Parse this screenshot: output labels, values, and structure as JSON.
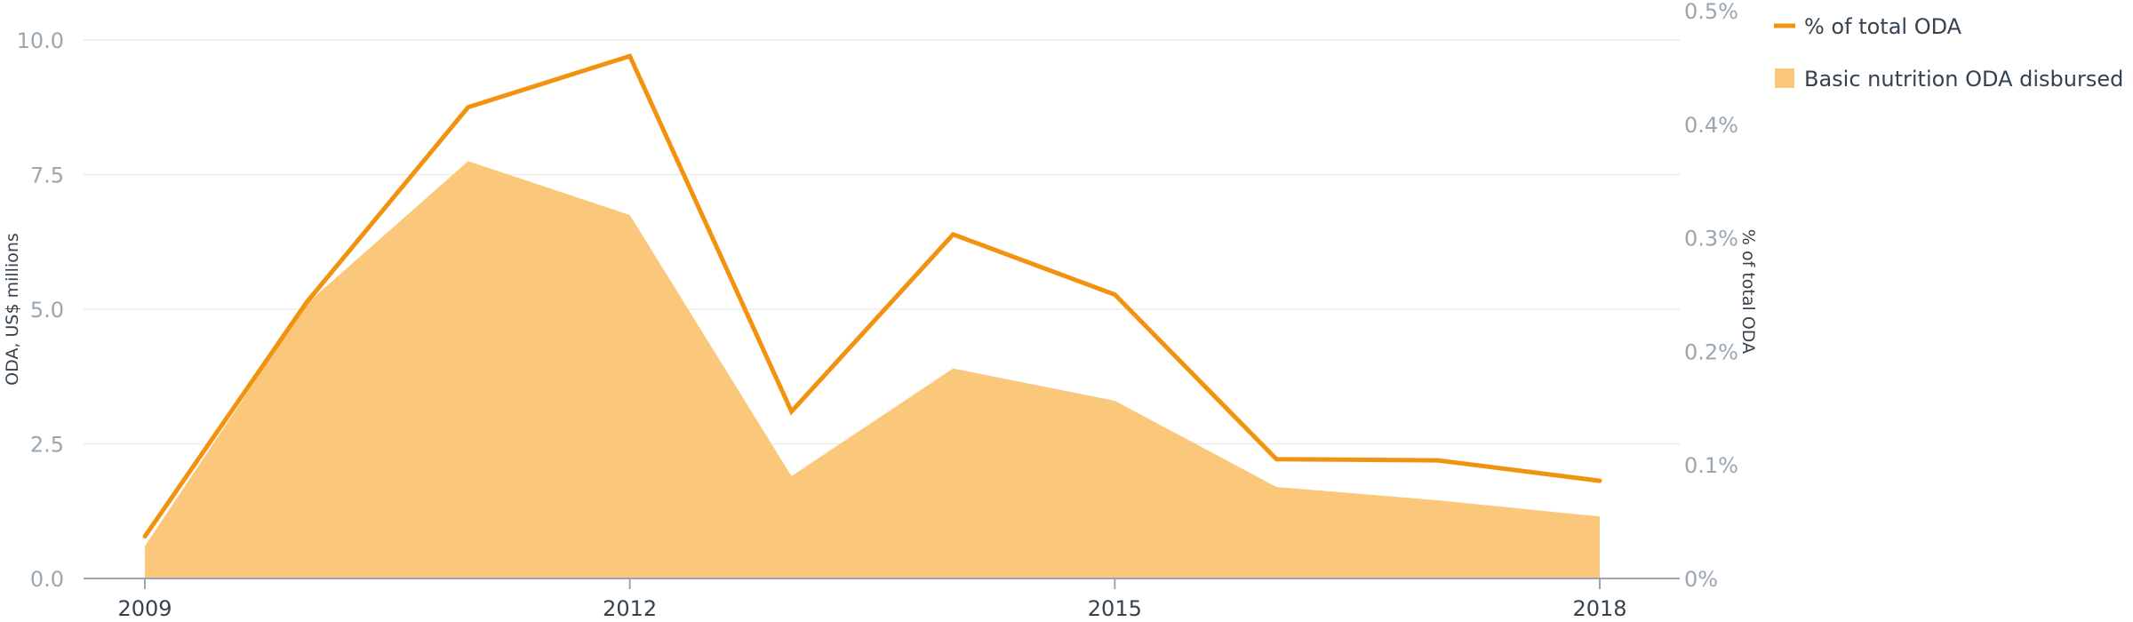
{
  "chart_data": {
    "type": "area",
    "x": [
      2009,
      2010,
      2011,
      2012,
      2013,
      2014,
      2015,
      2016,
      2017,
      2018
    ],
    "x_tick_labels": [
      "2009",
      "2012",
      "2015",
      "2018"
    ],
    "series": [
      {
        "name": "Basic nutrition ODA disbursed",
        "type": "area",
        "axis": "left",
        "color": "#fbc87b",
        "values": [
          0.6,
          5.1,
          7.75,
          6.75,
          1.9,
          3.9,
          3.3,
          1.7,
          1.45,
          1.15
        ]
      },
      {
        "name": "% of total ODA",
        "type": "line",
        "axis": "right",
        "color": "#f2930f",
        "values": [
          0.037,
          0.243,
          0.415,
          0.46,
          0.147,
          0.303,
          0.25,
          0.105,
          0.104,
          0.086
        ]
      }
    ],
    "left_axis": {
      "label": "ODA, US$ millions",
      "ylim": [
        0,
        10
      ],
      "ticks": [
        0,
        2.5,
        5,
        7.5,
        10
      ],
      "tick_labels": [
        "0.0",
        "2.5",
        "5.0",
        "7.5",
        "10.0"
      ]
    },
    "right_axis": {
      "label": "% of total ODA",
      "ylim": [
        0,
        0.5
      ],
      "ticks": [
        0,
        0.1,
        0.2,
        0.3,
        0.4,
        0.5
      ],
      "tick_labels": [
        "0%",
        "0.1%",
        "0.2%",
        "0.3%",
        "0.4%",
        "0.5%"
      ]
    },
    "grid": true,
    "legend_position": "top-right",
    "axis_color": "#9aa6b2",
    "grid_color": "#ececec",
    "text_color": "#36434f"
  }
}
